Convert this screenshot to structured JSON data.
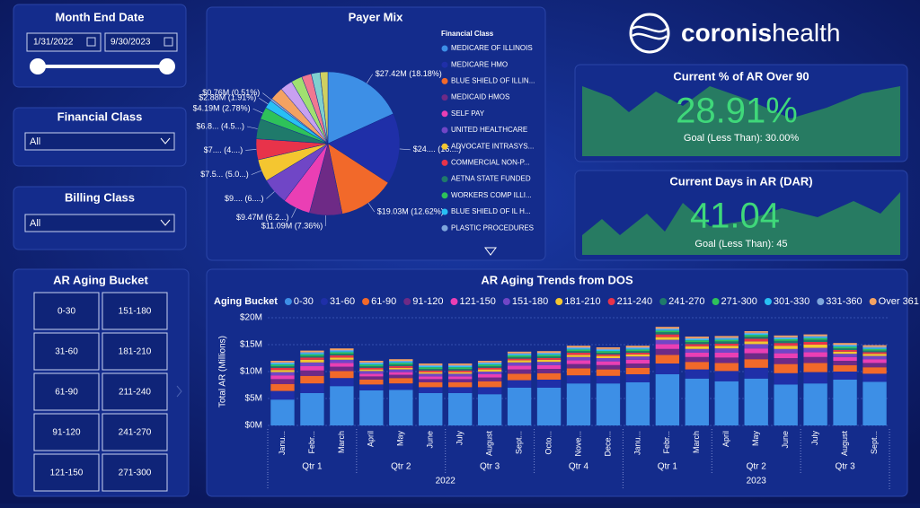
{
  "slicers": {
    "month_end": {
      "title": "Month End Date",
      "start": "1/31/2022",
      "end": "9/30/2023"
    },
    "financial_class": {
      "title": "Financial Class",
      "selected": "All"
    },
    "billing_class": {
      "title": "Billing Class",
      "selected": "All"
    },
    "aging_bucket": {
      "title": "AR Aging Bucket",
      "buttons": [
        "0-30",
        "151-180",
        "31-60",
        "181-210",
        "61-90",
        "211-240",
        "91-120",
        "241-270",
        "121-150",
        "271-300"
      ]
    }
  },
  "logo": {
    "brand": "coronis",
    "suffix": "health"
  },
  "kpis": [
    {
      "title": "Current % of AR Over 90",
      "value": "28.91%",
      "goal": "Goal (Less Than): 30.00%"
    },
    {
      "title": "Current Days in AR (DAR)",
      "value": "41.04",
      "goal": "Goal (Less Than): 45"
    }
  ],
  "chart_data": [
    {
      "type": "pie",
      "title": "Payer Mix",
      "legend_title": "Financial Class",
      "legend": [
        "MEDICARE OF ILLINOIS",
        "MEDICARE HMO",
        "BLUE SHIELD OF ILLIN...",
        "MEDICAID HMOS",
        "SELF PAY",
        "UNITED HEALTHCARE",
        "ADVOCATE INTRASYS...",
        "COMMERCIAL NON-P...",
        "AETNA STATE FUNDED",
        "WORKERS COMP ILLI...",
        "BLUE SHIELD OF IL H...",
        "PLASTIC PROCEDURES"
      ],
      "values": [
        18.18,
        16,
        12.62,
        7.36,
        6.2,
        6,
        5,
        4.7,
        4.5,
        2.78,
        1.91,
        0.51,
        3,
        2.8,
        2.5,
        2.2,
        2,
        1.74
      ],
      "value_labels": [
        "$27.42M (18.18%)",
        "$24.... (16....)",
        "$19.03M (12.62%)",
        "$11.09M (7.36%)",
        "$9.47M (6.2...)",
        "$9.... (6....)",
        "$7.5... (5.0...)",
        "$7.... (4....)",
        "$6.8... (4.5...)",
        "$4.19M (2.78%)",
        "$2.88M (1.91%)",
        "$0.76M (0.51%)",
        null,
        null,
        null,
        null,
        null,
        null
      ],
      "colors": [
        "#3d8fe6",
        "#1f2fa8",
        "#f2692a",
        "#6e2a86",
        "#ea3fb4",
        "#7046c6",
        "#f4c630",
        "#e8334a",
        "#1f7a6b",
        "#2ec25a",
        "#28c0f4",
        "#7ea6dc",
        "#f4a262",
        "#c8a0f0",
        "#a0e070",
        "#f07890",
        "#80d0d0",
        "#d0d060"
      ]
    },
    {
      "type": "bar",
      "stacked": true,
      "title": "AR Aging Trends from DOS",
      "legend_title": "Aging Bucket",
      "y_label": "Total AR (Millions)",
      "categories": [
        "Janu...",
        "Febr...",
        "March",
        "April",
        "May",
        "June",
        "July",
        "August",
        "Sept...",
        "Octo...",
        "Nove...",
        "Dece...",
        "Janu...",
        "Febr...",
        "March",
        "April",
        "May",
        "June",
        "July",
        "August",
        "Sept..."
      ],
      "quarters": [
        [
          "Qtr 1",
          "Qtr 2",
          "Qtr 3",
          "Qtr 4"
        ],
        [
          "Qtr 1",
          "Qtr 2",
          "Qtr 3"
        ]
      ],
      "years": [
        "2022",
        "2023"
      ],
      "ylim": [
        0,
        20
      ],
      "yticks": [
        {
          "value": 0,
          "label": "$0M"
        },
        {
          "value": 5,
          "label": "$5M"
        },
        {
          "value": 10,
          "label": "$10M"
        },
        {
          "value": 15,
          "label": "$15M"
        },
        {
          "value": 20,
          "label": "$20M"
        }
      ],
      "series": [
        {
          "name": "0-30",
          "color": "#3d8fe6",
          "values": [
            4.8,
            6,
            7.3,
            6.5,
            6.6,
            6,
            6,
            5.8,
            7,
            7,
            7.8,
            7.8,
            8,
            9.5,
            8.7,
            8.2,
            8.7,
            7.6,
            7.8,
            8.5,
            8.1
          ]
        },
        {
          "name": "31-60",
          "color": "#1f2fa8",
          "values": [
            1.6,
            1.8,
            1.5,
            1.1,
            1.2,
            1.1,
            1.1,
            1.3,
            1.4,
            1.5,
            1.5,
            1.4,
            1.5,
            2.0,
            1.7,
            1.9,
            2.0,
            2.1,
            2.1,
            1.5,
            1.5
          ]
        },
        {
          "name": "61-90",
          "color": "#f2692a",
          "values": [
            1.3,
            1.4,
            1.3,
            0.9,
            1.0,
            0.9,
            0.9,
            1.1,
            1.2,
            1.2,
            1.3,
            1.2,
            1.2,
            1.6,
            1.4,
            1.5,
            1.6,
            1.7,
            1.7,
            1.2,
            1.2
          ]
        },
        {
          "name": "91-120",
          "color": "#6e2a86",
          "values": [
            0.9,
            1.0,
            0.8,
            0.6,
            0.6,
            0.6,
            0.6,
            0.7,
            0.8,
            0.8,
            0.8,
            0.8,
            0.8,
            1.1,
            0.9,
            1.0,
            1.1,
            1.1,
            1.1,
            0.8,
            0.8
          ]
        },
        {
          "name": "121-150",
          "color": "#ea3fb4",
          "values": [
            0.7,
            0.8,
            0.7,
            0.5,
            0.5,
            0.5,
            0.5,
            0.6,
            0.7,
            0.7,
            0.7,
            0.7,
            0.7,
            0.9,
            0.8,
            0.9,
            0.9,
            0.9,
            0.9,
            0.7,
            0.7
          ]
        },
        {
          "name": "151-180",
          "color": "#7046c6",
          "values": [
            0.6,
            0.7,
            0.6,
            0.5,
            0.5,
            0.5,
            0.5,
            0.5,
            0.6,
            0.6,
            0.6,
            0.6,
            0.6,
            0.8,
            0.7,
            0.8,
            0.8,
            0.8,
            0.8,
            0.6,
            0.6
          ]
        },
        {
          "name": "181-210",
          "color": "#f4c630",
          "values": [
            0.4,
            0.5,
            0.4,
            0.3,
            0.3,
            0.3,
            0.3,
            0.4,
            0.4,
            0.4,
            0.4,
            0.4,
            0.4,
            0.5,
            0.5,
            0.5,
            0.5,
            0.6,
            0.6,
            0.4,
            0.4
          ]
        },
        {
          "name": "211-240",
          "color": "#e8334a",
          "values": [
            0.4,
            0.4,
            0.4,
            0.3,
            0.3,
            0.3,
            0.3,
            0.3,
            0.3,
            0.3,
            0.4,
            0.3,
            0.3,
            0.5,
            0.4,
            0.4,
            0.5,
            0.5,
            0.5,
            0.3,
            0.3
          ]
        },
        {
          "name": "241-270",
          "color": "#1f7a6b",
          "values": [
            0.3,
            0.3,
            0.3,
            0.3,
            0.3,
            0.3,
            0.3,
            0.3,
            0.3,
            0.3,
            0.3,
            0.3,
            0.3,
            0.4,
            0.4,
            0.4,
            0.4,
            0.4,
            0.4,
            0.3,
            0.3
          ]
        },
        {
          "name": "271-300",
          "color": "#2ec25a",
          "values": [
            0.3,
            0.3,
            0.3,
            0.3,
            0.3,
            0.3,
            0.3,
            0.3,
            0.3,
            0.3,
            0.3,
            0.3,
            0.3,
            0.3,
            0.3,
            0.3,
            0.3,
            0.3,
            0.3,
            0.3,
            0.3
          ]
        },
        {
          "name": "301-330",
          "color": "#28c0f4",
          "values": [
            0.2,
            0.2,
            0.2,
            0.2,
            0.2,
            0.2,
            0.2,
            0.2,
            0.2,
            0.2,
            0.2,
            0.2,
            0.2,
            0.2,
            0.2,
            0.2,
            0.2,
            0.2,
            0.2,
            0.2,
            0.2
          ]
        },
        {
          "name": "331-360",
          "color": "#7ea6dc",
          "values": [
            0.2,
            0.2,
            0.2,
            0.2,
            0.2,
            0.2,
            0.2,
            0.2,
            0.2,
            0.2,
            0.2,
            0.2,
            0.2,
            0.2,
            0.2,
            0.2,
            0.2,
            0.2,
            0.2,
            0.2,
            0.2
          ]
        },
        {
          "name": "Over 361",
          "color": "#f4a262",
          "values": [
            0.3,
            0.3,
            0.3,
            0.3,
            0.3,
            0.3,
            0.3,
            0.3,
            0.3,
            0.3,
            0.3,
            0.3,
            0.3,
            0.3,
            0.3,
            0.3,
            0.3,
            0.3,
            0.3,
            0.3,
            0.3
          ]
        }
      ]
    }
  ]
}
